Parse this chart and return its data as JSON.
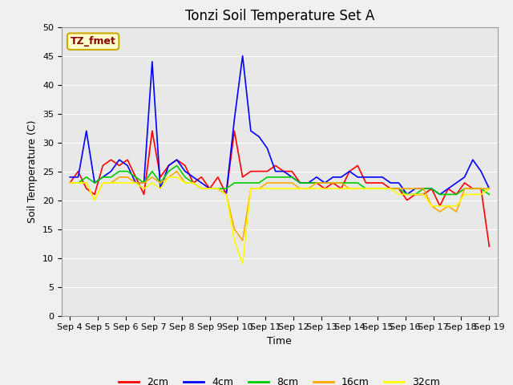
{
  "title": "Tonzi Soil Temperature Set A",
  "xlabel": "Time",
  "ylabel": "Soil Temperature (C)",
  "annotation": "TZ_fmet",
  "ylim": [
    0,
    50
  ],
  "yticks": [
    0,
    5,
    10,
    15,
    20,
    25,
    30,
    35,
    40,
    45,
    50
  ],
  "x_labels": [
    "Sep 4",
    "Sep 5",
    "Sep 6",
    "Sep 7",
    "Sep 8",
    "Sep 9",
    "Sep 10",
    "Sep 11",
    "Sep 12",
    "Sep 13",
    "Sep 14",
    "Sep 15",
    "Sep 16",
    "Sep 17",
    "Sep 18",
    "Sep 19"
  ],
  "series": {
    "2cm": {
      "color": "#ff0000",
      "data": [
        23,
        25,
        22,
        21,
        26,
        27,
        26,
        27,
        24,
        21,
        32,
        24,
        26,
        27,
        26,
        23,
        24,
        22,
        24,
        21,
        32,
        24,
        25,
        25,
        25,
        26,
        25,
        25,
        23,
        23,
        23,
        22,
        23,
        22,
        25,
        26,
        23,
        23,
        23,
        22,
        22,
        20,
        21,
        21,
        22,
        19,
        22,
        21,
        23,
        22,
        22,
        12
      ]
    },
    "4cm": {
      "color": "#0000ff",
      "data": [
        24,
        24,
        32,
        23,
        24,
        25,
        27,
        26,
        23,
        23,
        44,
        22,
        26,
        27,
        25,
        24,
        23,
        22,
        22,
        21,
        34,
        45,
        32,
        31,
        29,
        25,
        25,
        24,
        23,
        23,
        24,
        23,
        24,
        24,
        25,
        24,
        24,
        24,
        24,
        23,
        23,
        21,
        22,
        22,
        22,
        21,
        22,
        23,
        24,
        27,
        25,
        22
      ]
    },
    "8cm": {
      "color": "#00cc00",
      "data": [
        23,
        23,
        24,
        23,
        24,
        24,
        25,
        25,
        24,
        23,
        25,
        23,
        25,
        26,
        24,
        23,
        22,
        22,
        22,
        22,
        23,
        23,
        23,
        23,
        24,
        24,
        24,
        24,
        23,
        23,
        23,
        23,
        23,
        23,
        23,
        23,
        22,
        22,
        22,
        22,
        22,
        21,
        21,
        22,
        22,
        21,
        21,
        21,
        22,
        22,
        22,
        21
      ]
    },
    "16cm": {
      "color": "#ffaa00",
      "data": [
        23,
        23,
        23,
        20,
        23,
        23,
        24,
        24,
        23,
        23,
        24,
        23,
        24,
        25,
        23,
        23,
        22,
        22,
        22,
        21,
        15,
        13,
        22,
        22,
        23,
        23,
        23,
        23,
        22,
        22,
        23,
        23,
        23,
        23,
        22,
        22,
        22,
        22,
        22,
        22,
        22,
        22,
        22,
        22,
        19,
        18,
        19,
        18,
        22,
        22,
        22,
        22
      ]
    },
    "32cm": {
      "color": "#ffff00",
      "data": [
        23,
        23,
        23,
        20,
        23,
        23,
        23,
        23,
        23,
        22,
        23,
        22,
        24,
        24,
        23,
        23,
        22,
        22,
        22,
        21,
        13,
        9,
        22,
        22,
        22,
        22,
        22,
        22,
        22,
        22,
        22,
        22,
        22,
        22,
        22,
        22,
        22,
        22,
        22,
        22,
        21,
        21,
        21,
        21,
        19,
        19,
        19,
        19,
        21,
        21,
        21,
        22
      ]
    }
  },
  "background_color": "#e8e8e8",
  "plot_bg_color": "#e0e0e0",
  "grid_color": "#ffffff",
  "fig_bg_color": "#f0f0f0",
  "title_fontsize": 12,
  "axis_fontsize": 9,
  "tick_fontsize": 8,
  "legend_fontsize": 9
}
